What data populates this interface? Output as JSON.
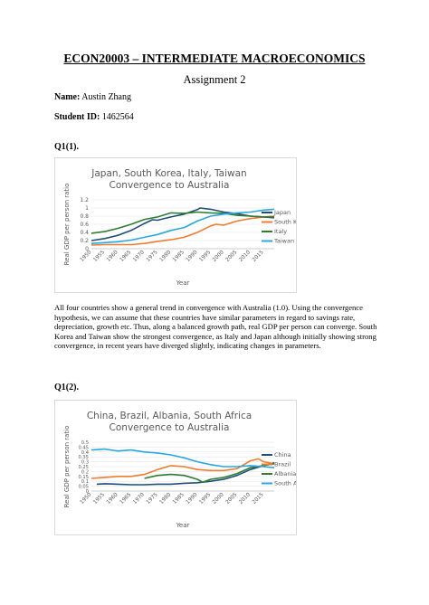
{
  "document": {
    "title": "ECON20003 – INTERMEDIATE MACROECONOMICS",
    "subtitle": "Assignment 2",
    "name_label": "Name:",
    "name_value": "Austin Zhang",
    "student_id_label": "Student ID:",
    "student_id_value": "1462564"
  },
  "q1": {
    "label": "Q1(1).",
    "paragraph": "All four countries show a general trend in convergence with Australia (1.0). Using the convergence hypothesis, we can assume that these countries have similar parameters in regard to savings rate, depreciation, growth etc. Thus, along a balanced growth path, real GDP per person can converge. South Korea and Taiwan show the strongest convergence, as Italy and Japan although initially showing strong convergence, in recent years have diverged slightly, indicating changes in parameters."
  },
  "q2": {
    "label": "Q1(2)."
  },
  "chart_data": [
    {
      "type": "line",
      "title": "Japan, South Korea, Italy, Taiwan Convergence to Australia",
      "title_lines": [
        "Japan, South Korea, Italy, Taiwan",
        "Convergence to Australia"
      ],
      "xlabel": "Year",
      "ylabel": "Real GDP per person ratio",
      "xlim": [
        1950,
        2019
      ],
      "ylim": [
        0,
        1.2
      ],
      "yticks": [
        "0",
        "0.2",
        "0.4",
        "0.6",
        "0.8",
        "1",
        "1.2"
      ],
      "xticks": [
        "1950",
        "1955",
        "1960",
        "1965",
        "1970",
        "1975",
        "1980",
        "1985",
        "1990",
        "1995",
        "2000",
        "2005",
        "2010",
        "2015"
      ],
      "legend": "right",
      "series": [
        {
          "name": "Japan",
          "color": "#1f4e79",
          "x": [
            1950,
            1955,
            1960,
            1965,
            1970,
            1973,
            1975,
            1980,
            1985,
            1990,
            1991,
            1995,
            2000,
            2005,
            2010,
            2015,
            2019
          ],
          "y": [
            0.2,
            0.25,
            0.33,
            0.45,
            0.62,
            0.71,
            0.7,
            0.78,
            0.85,
            0.96,
            1.0,
            0.97,
            0.9,
            0.86,
            0.8,
            0.78,
            0.76
          ]
        },
        {
          "name": "South Korea",
          "color": "#ed7d31",
          "x": [
            1950,
            1955,
            1960,
            1965,
            1970,
            1975,
            1980,
            1985,
            1990,
            1995,
            1997,
            2000,
            2005,
            2010,
            2015,
            2019
          ],
          "y": [
            0.09,
            0.1,
            0.1,
            0.1,
            0.13,
            0.18,
            0.22,
            0.28,
            0.4,
            0.56,
            0.6,
            0.58,
            0.68,
            0.74,
            0.78,
            0.8
          ]
        },
        {
          "name": "Italy",
          "color": "#2e7d32",
          "x": [
            1950,
            1955,
            1960,
            1965,
            1970,
            1975,
            1980,
            1985,
            1990,
            1995,
            2000,
            2005,
            2010,
            2015,
            2019
          ],
          "y": [
            0.38,
            0.42,
            0.5,
            0.6,
            0.72,
            0.78,
            0.88,
            0.87,
            0.9,
            0.88,
            0.87,
            0.82,
            0.8,
            0.78,
            0.78
          ]
        },
        {
          "name": "Taiwan",
          "color": "#29a8e0",
          "x": [
            1950,
            1955,
            1960,
            1965,
            1970,
            1975,
            1980,
            1985,
            1990,
            1995,
            2000,
            2005,
            2010,
            2015,
            2019
          ],
          "y": [
            0.13,
            0.15,
            0.17,
            0.21,
            0.28,
            0.35,
            0.45,
            0.52,
            0.68,
            0.8,
            0.85,
            0.88,
            0.9,
            0.95,
            0.97
          ]
        }
      ]
    },
    {
      "type": "line",
      "title": "China, Brazil, Albania, South Africa Convergence to Australia",
      "title_lines": [
        "China, Brazil, Albania, South Africa",
        "Convergence to Australia"
      ],
      "xlabel": "Year",
      "ylabel": "Real GDP per person ratio",
      "xlim": [
        1950,
        2019
      ],
      "ylim": [
        0,
        0.5
      ],
      "yticks": [
        "0",
        "0.05",
        "0.1",
        "0.15",
        "0.2",
        "0.25",
        "0.3",
        "0.35",
        "0.4",
        "0.45",
        "0.5"
      ],
      "xticks": [
        "1950",
        "1955",
        "1960",
        "1965",
        "1970",
        "1975",
        "1980",
        "1985",
        "1990",
        "1995",
        "2000",
        "2005",
        "2010",
        "2015"
      ],
      "legend": "right",
      "series": [
        {
          "name": "China",
          "color": "#1f4e79",
          "x": [
            1952,
            1955,
            1960,
            1965,
            1970,
            1975,
            1980,
            1985,
            1990,
            1995,
            2000,
            2005,
            2010,
            2015,
            2019
          ],
          "y": [
            0.07,
            0.075,
            0.07,
            0.065,
            0.065,
            0.07,
            0.07,
            0.08,
            0.085,
            0.1,
            0.12,
            0.16,
            0.22,
            0.26,
            0.29
          ]
        },
        {
          "name": "Brazil",
          "color": "#ed7d31",
          "x": [
            1950,
            1955,
            1960,
            1965,
            1970,
            1975,
            1980,
            1985,
            1990,
            1995,
            2000,
            2005,
            2010,
            2013,
            2015,
            2019
          ],
          "y": [
            0.13,
            0.14,
            0.15,
            0.15,
            0.17,
            0.22,
            0.26,
            0.25,
            0.22,
            0.21,
            0.21,
            0.23,
            0.31,
            0.33,
            0.3,
            0.28
          ]
        },
        {
          "name": "Albania",
          "color": "#2e7d32",
          "x": [
            1970,
            1975,
            1980,
            1985,
            1990,
            1992,
            1995,
            2000,
            2005,
            2010,
            2015,
            2019
          ],
          "y": [
            0.13,
            0.16,
            0.17,
            0.16,
            0.12,
            0.09,
            0.12,
            0.14,
            0.18,
            0.24,
            0.26,
            0.28
          ]
        },
        {
          "name": "South Africa",
          "color": "#29a8e0",
          "x": [
            1950,
            1955,
            1960,
            1965,
            1970,
            1975,
            1980,
            1985,
            1990,
            1995,
            2000,
            2005,
            2010,
            2015,
            2019
          ],
          "y": [
            0.42,
            0.43,
            0.41,
            0.42,
            0.4,
            0.39,
            0.37,
            0.34,
            0.3,
            0.27,
            0.25,
            0.25,
            0.26,
            0.25,
            0.24
          ]
        }
      ]
    }
  ]
}
